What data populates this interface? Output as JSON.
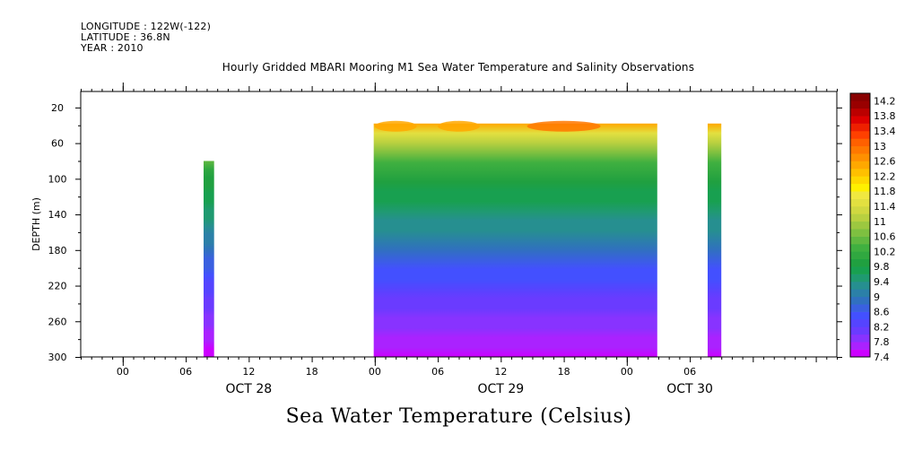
{
  "header": {
    "longitude": "LONGITUDE : 122W(-122)",
    "latitude": "LATITUDE : 36.8N",
    "year": "YEAR : 2010"
  },
  "chart_data": {
    "type": "heatmap",
    "title": "Hourly Gridded MBARI Mooring M1 Sea Water Temperature and Salinity Observations",
    "bottom_title": "Sea Water Temperature (Celsius)",
    "ylabel": "DEPTH (m)",
    "xlabel": "",
    "x_unit": "hours since OCT 28 00:00, 2010",
    "xlim": [
      -4,
      68
    ],
    "ylim": [
      300,
      2
    ],
    "y_ticks": [
      20,
      60,
      100,
      140,
      180,
      220,
      260,
      300
    ],
    "x_ticks": [
      {
        "x": 0,
        "label": "00"
      },
      {
        "x": 6,
        "label": "06"
      },
      {
        "x": 12,
        "label": "12"
      },
      {
        "x": 18,
        "label": "18"
      },
      {
        "x": 24,
        "label": "00"
      },
      {
        "x": 30,
        "label": "06"
      },
      {
        "x": 36,
        "label": "12"
      },
      {
        "x": 42,
        "label": "18"
      },
      {
        "x": 48,
        "label": "00"
      },
      {
        "x": 54,
        "label": "06"
      }
    ],
    "day_labels": [
      {
        "x": 12,
        "label": "OCT 28"
      },
      {
        "x": 36,
        "label": "OCT 29"
      },
      {
        "x": 54,
        "label": "OCT 30"
      }
    ],
    "colorbar": {
      "min": 7.4,
      "max": 14.4,
      "step": 0.2,
      "labels": [
        "14.2",
        "13.8",
        "13.4",
        "13",
        "12.6",
        "12.2",
        "11.8",
        "11.4",
        "11",
        "10.6",
        "10.2",
        "9.8",
        "9.4",
        "9",
        "8.6",
        "8.2",
        "7.8",
        "7.4"
      ],
      "colors": [
        "#cc00ff",
        "#aa22ff",
        "#8833ff",
        "#6a3bff",
        "#5544ff",
        "#4350ff",
        "#3a60e0",
        "#3070c0",
        "#2b80a8",
        "#268f90",
        "#1f9a70",
        "#18a050",
        "#20a040",
        "#30a840",
        "#40b040",
        "#60b840",
        "#7ec040",
        "#9cc840",
        "#b8d040",
        "#d0d840",
        "#e2e040",
        "#f0e840",
        "#fff000",
        "#ffd800",
        "#ffc000",
        "#ffa800",
        "#ff9000",
        "#ff7800",
        "#ff6000",
        "#ff4000",
        "#ee2000",
        "#dd0000",
        "#bb0000",
        "#990000",
        "#880000"
      ]
    },
    "data_blocks": [
      {
        "x_start": 7.7,
        "x_end": 8.7,
        "depth_top": 80,
        "depth_bottom": 300
      },
      {
        "x_start": 23.9,
        "x_end": 50.9,
        "depth_top": 38,
        "depth_bottom": 300
      },
      {
        "x_start": 55.7,
        "x_end": 57,
        "depth_top": 38,
        "depth_bottom": 300
      }
    ],
    "grid": false,
    "legend": "right colorbar"
  }
}
